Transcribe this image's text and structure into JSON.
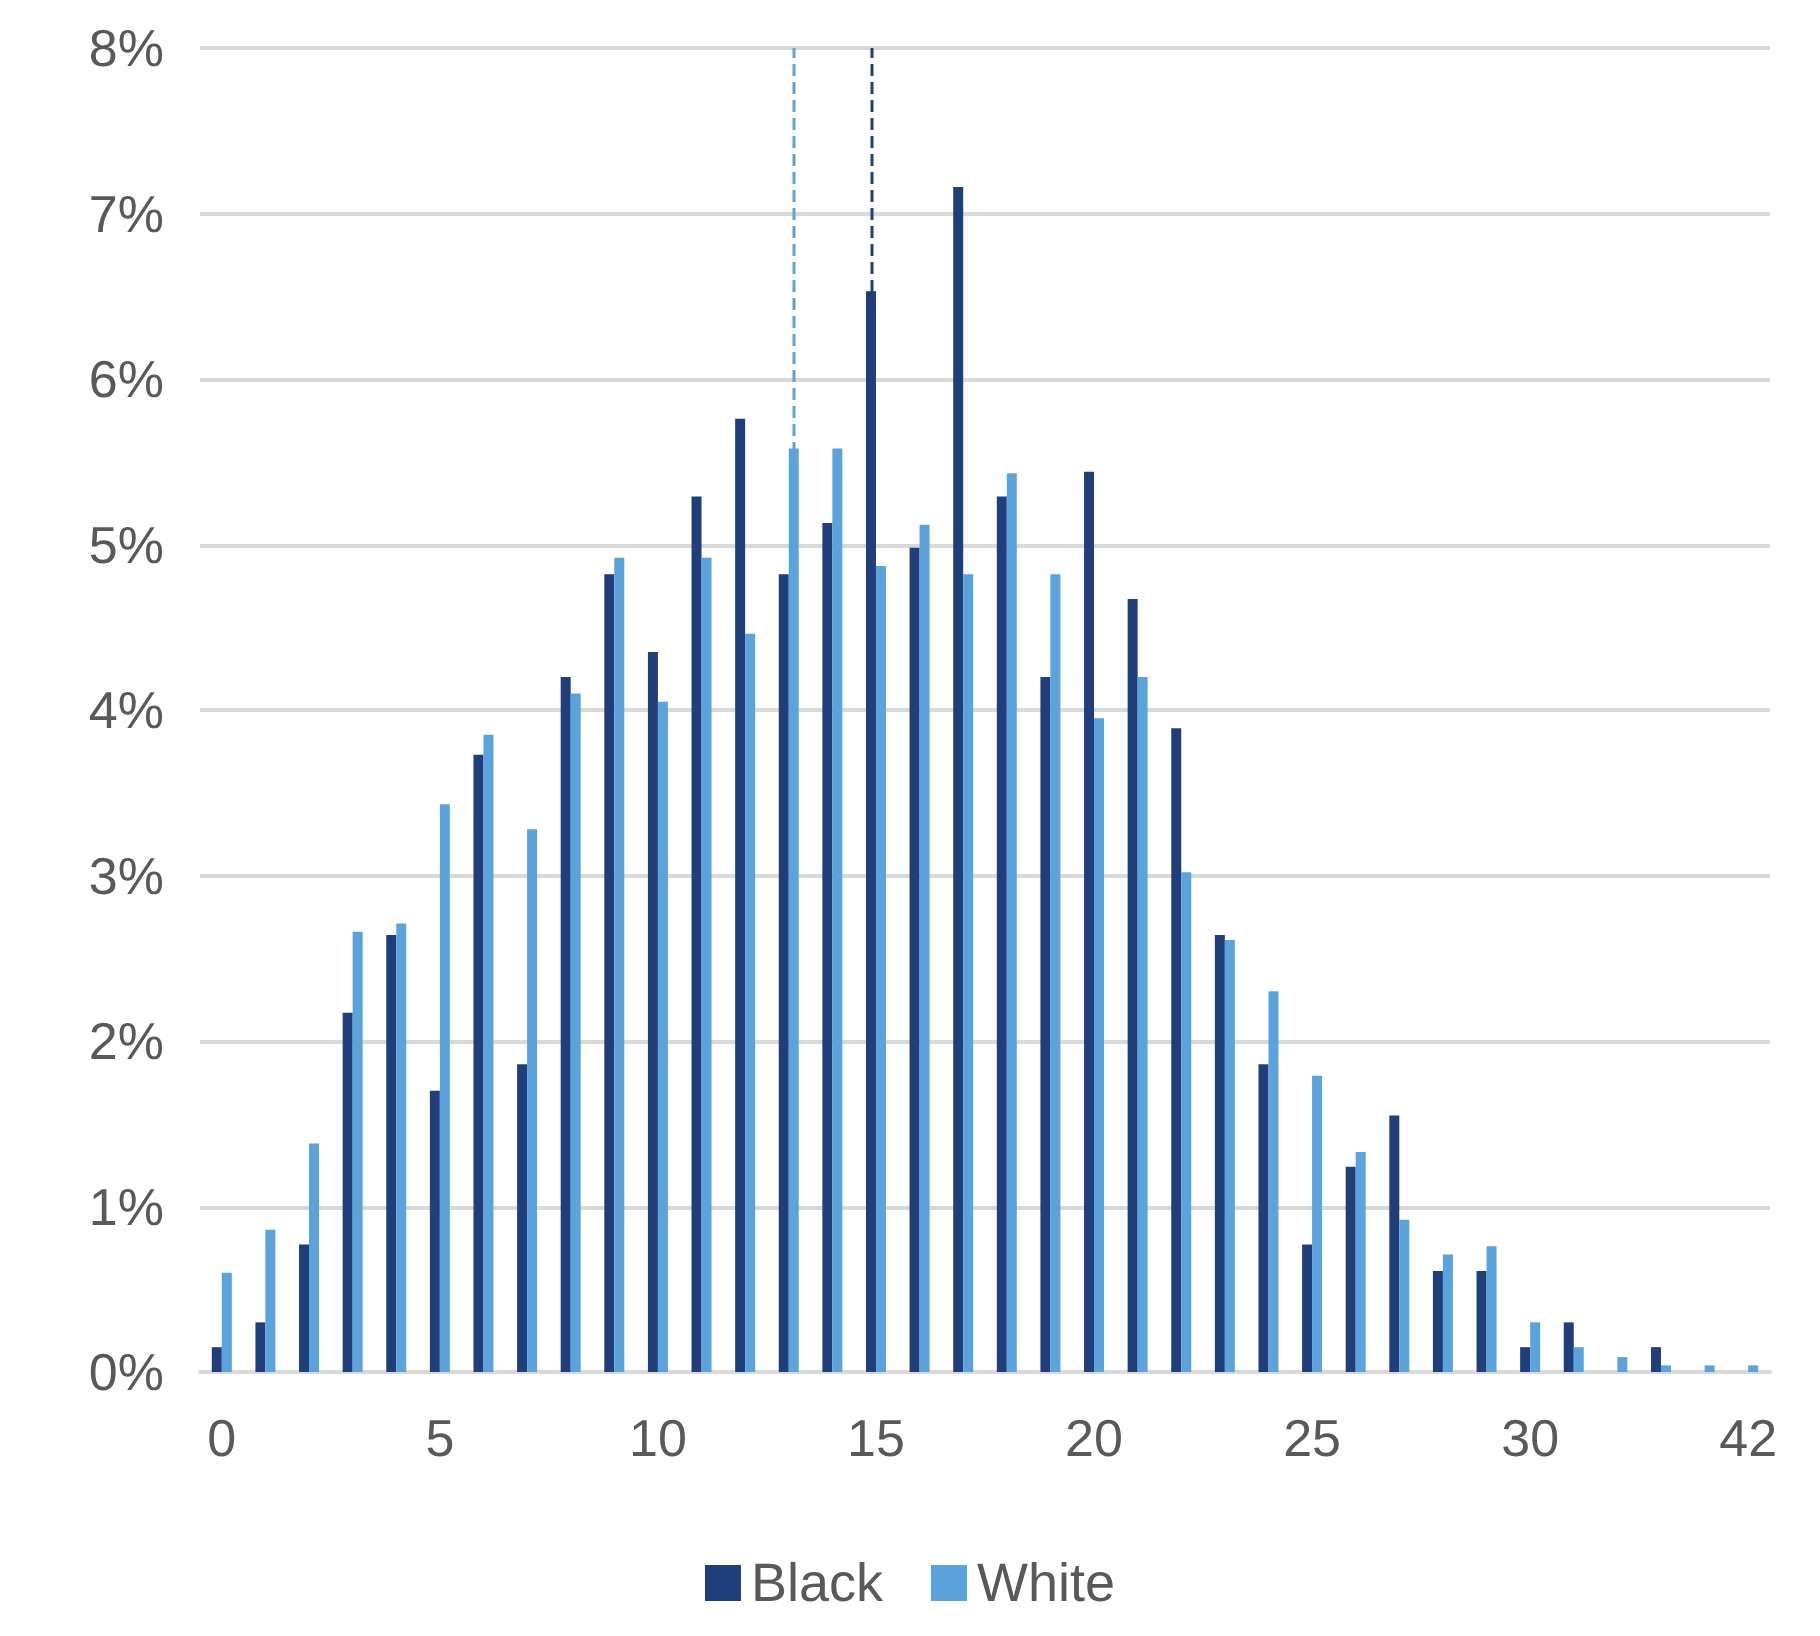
{
  "chart_data": {
    "type": "bar",
    "categories": [
      "0",
      null,
      null,
      null,
      null,
      "5",
      null,
      null,
      null,
      null,
      "10",
      null,
      null,
      null,
      null,
      "15",
      null,
      null,
      null,
      null,
      "20",
      null,
      null,
      null,
      null,
      "25",
      null,
      null,
      null,
      null,
      "30",
      null,
      null,
      null,
      null,
      "42"
    ],
    "series": [
      {
        "name": "Black",
        "color": "#203f7a",
        "values": [
          0.15,
          0.3,
          0.77,
          2.17,
          2.64,
          1.7,
          3.73,
          1.86,
          4.2,
          4.82,
          4.35,
          5.29,
          5.76,
          4.82,
          5.13,
          6.53,
          4.98,
          7.16,
          5.29,
          4.2,
          5.44,
          4.67,
          3.89,
          2.64,
          1.86,
          0.77,
          1.24,
          1.55,
          0.61,
          0.61,
          0.15,
          0.3,
          0,
          0.15,
          0,
          0
        ]
      },
      {
        "name": "White",
        "color": "#5ba3dc",
        "values": [
          0.6,
          0.86,
          1.38,
          2.66,
          2.71,
          3.43,
          3.85,
          3.28,
          4.1,
          4.92,
          4.05,
          4.92,
          4.46,
          5.58,
          5.58,
          4.87,
          5.12,
          4.82,
          5.43,
          4.82,
          3.95,
          4.2,
          3.02,
          2.61,
          2.3,
          1.79,
          1.33,
          0.92,
          0.71,
          0.76,
          0.3,
          0.15,
          0.09,
          0.04,
          0.04,
          0.04
        ]
      }
    ],
    "ylim": [
      0,
      8
    ],
    "yticks": [
      {
        "value": 0,
        "label": "0%"
      },
      {
        "value": 1,
        "label": "1%"
      },
      {
        "value": 2,
        "label": "2%"
      },
      {
        "value": 3,
        "label": "3%"
      },
      {
        "value": 4,
        "label": "4%"
      },
      {
        "value": 5,
        "label": "5%"
      },
      {
        "value": 6,
        "label": "6%"
      },
      {
        "value": 7,
        "label": "7%"
      },
      {
        "value": 8,
        "label": "8%"
      }
    ],
    "ref_lines": [
      {
        "axis": "x",
        "value": "15",
        "color": "#203f7a",
        "line_style": "dashed"
      }
    ],
    "grid": "y",
    "legend": "bottom"
  }
}
